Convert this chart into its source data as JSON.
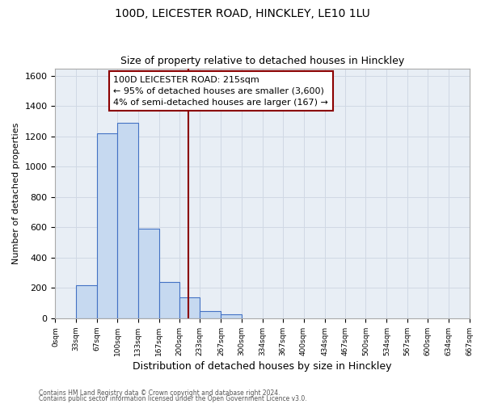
{
  "title": "100D, LEICESTER ROAD, HINCKLEY, LE10 1LU",
  "subtitle": "Size of property relative to detached houses in Hinckley",
  "xlabel": "Distribution of detached houses by size in Hinckley",
  "ylabel": "Number of detached properties",
  "footnote1": "Contains HM Land Registry data © Crown copyright and database right 2024.",
  "footnote2": "Contains public sector information licensed under the Open Government Licence v3.0.",
  "bar_edges": [
    0,
    33,
    67,
    100,
    133,
    167,
    200,
    233,
    267,
    300,
    334,
    367,
    400,
    434,
    467,
    500,
    534,
    567,
    600,
    634,
    667
  ],
  "bar_heights": [
    0,
    220,
    1220,
    1290,
    590,
    240,
    140,
    50,
    25,
    0,
    0,
    0,
    0,
    0,
    0,
    0,
    0,
    0,
    0,
    0
  ],
  "bar_color": "#c6d9f0",
  "bar_edge_color": "#4472c4",
  "x_tick_labels": [
    "0sqm",
    "33sqm",
    "67sqm",
    "100sqm",
    "133sqm",
    "167sqm",
    "200sqm",
    "233sqm",
    "267sqm",
    "300sqm",
    "334sqm",
    "367sqm",
    "400sqm",
    "434sqm",
    "467sqm",
    "500sqm",
    "534sqm",
    "567sqm",
    "600sqm",
    "634sqm",
    "667sqm"
  ],
  "ylim": [
    0,
    1650
  ],
  "yticks": [
    0,
    200,
    400,
    600,
    800,
    1000,
    1200,
    1400,
    1600
  ],
  "property_line_x": 215,
  "property_line_color": "#8b0000",
  "annotation_title": "100D LEICESTER ROAD: 215sqm",
  "annotation_line1": "← 95% of detached houses are smaller (3,600)",
  "annotation_line2": "4% of semi-detached houses are larger (167) →",
  "annotation_box_color": "#ffffff",
  "annotation_border_color": "#8b0000",
  "grid_color": "#d0d8e4",
  "bg_color": "#ffffff",
  "plot_bg_color": "#e8eef5"
}
